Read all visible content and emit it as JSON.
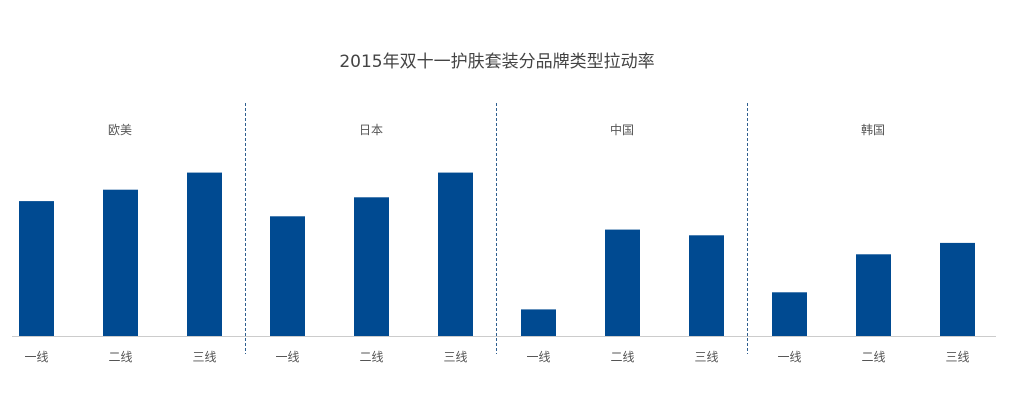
{
  "chart_data": {
    "type": "bar",
    "title": "2015年双十一护肤套装分品牌类型拉动率",
    "xlabel": "",
    "ylabel": "",
    "ylim": [
      0,
      100
    ],
    "grid": false,
    "legend": "none",
    "bar_color": "#004a91",
    "divider_color": "#2f5f8f",
    "baseline_color": "#cccccc",
    "groups": [
      {
        "name": "欧美",
        "categories": [
          "一线",
          "二线",
          "三线"
        ],
        "values": [
          71,
          77,
          86
        ]
      },
      {
        "name": "日本",
        "categories": [
          "一线",
          "二线",
          "三线"
        ],
        "values": [
          63,
          73,
          86
        ]
      },
      {
        "name": "中国",
        "categories": [
          "一线",
          "二线",
          "三线"
        ],
        "values": [
          14,
          56,
          53
        ]
      },
      {
        "name": "韩国",
        "categories": [
          "一线",
          "二线",
          "三线"
        ],
        "values": [
          23,
          43,
          49
        ]
      }
    ]
  }
}
